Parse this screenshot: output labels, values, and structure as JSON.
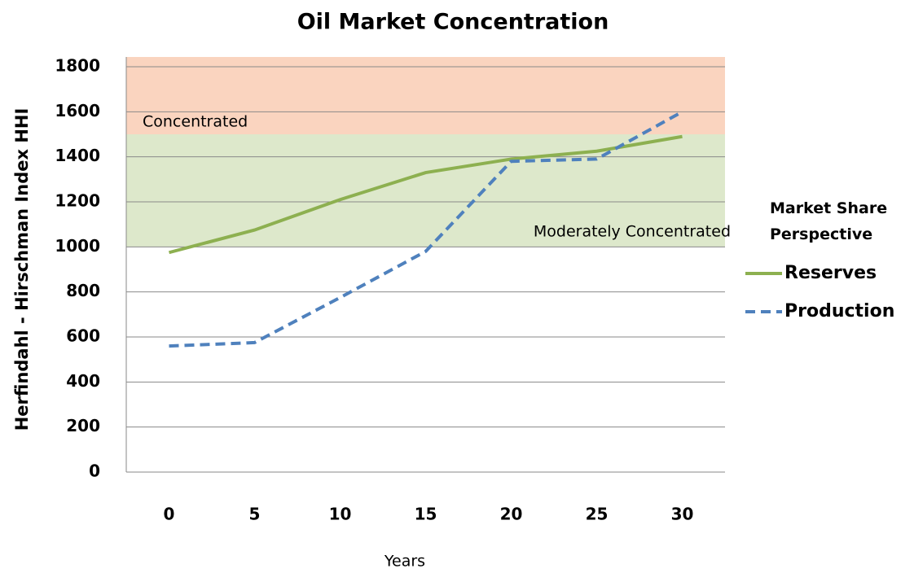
{
  "chart_data": {
    "type": "line",
    "title": "Oil Market Concentration",
    "xlabel": "Years",
    "ylabel": "Herfindahl - Hirschman Index HHI",
    "x": [
      0,
      5,
      10,
      15,
      20,
      25,
      30
    ],
    "xlim": [
      -2.5,
      32.5
    ],
    "xticks": [
      0,
      5,
      10,
      15,
      20,
      25,
      30
    ],
    "ylim": [
      0,
      1800
    ],
    "yticks": [
      0,
      200,
      400,
      600,
      800,
      1000,
      1200,
      1400,
      1600,
      1800
    ],
    "grid": true,
    "legend_title": "Market Share Perspective",
    "legend_position": "right",
    "bands": [
      {
        "label": "Concentrated",
        "from": 1500,
        "to": 1800,
        "color": "#fad4bf"
      },
      {
        "label": "Moderately Concentrated",
        "from": 1000,
        "to": 1500,
        "color": "#dde8cb"
      }
    ],
    "series": [
      {
        "name": "Reserves",
        "color": "#8db050",
        "dash": false,
        "values": [
          975,
          1075,
          1210,
          1330,
          1390,
          1425,
          1490
        ]
      },
      {
        "name": "Production",
        "color": "#4f81bd",
        "dash": true,
        "values": [
          560,
          575,
          775,
          980,
          1380,
          1390,
          1600
        ]
      }
    ]
  }
}
